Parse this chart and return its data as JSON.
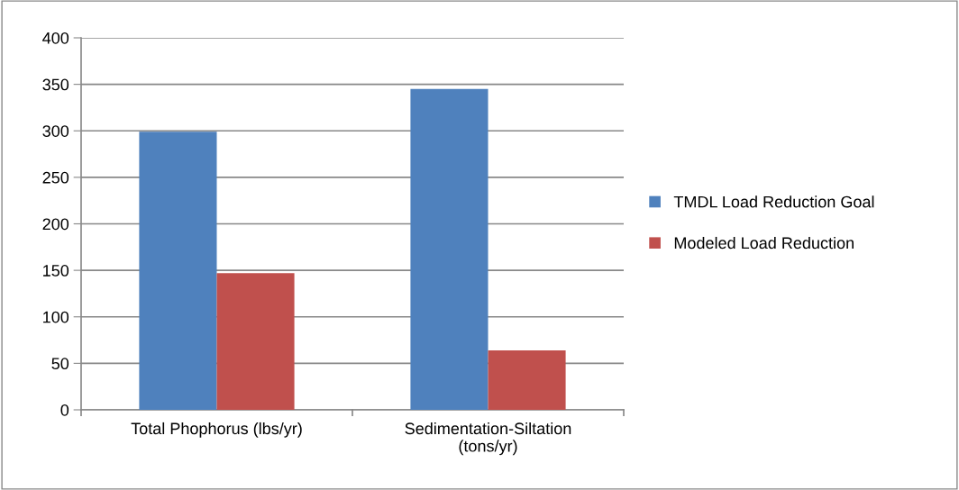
{
  "chart_data": {
    "type": "bar",
    "categories": [
      "Total Phophorus (lbs/yr)",
      "Sedimentation-Siltation\n(tons/yr)"
    ],
    "series": [
      {
        "name": "TMDL Load Reduction Goal",
        "color": "#4f81bd",
        "values": [
          299,
          345
        ]
      },
      {
        "name": "Modeled Load Reduction",
        "color": "#c0504d",
        "values": [
          147,
          64
        ]
      }
    ],
    "ylim": [
      0,
      400
    ],
    "yticks": [
      0,
      50,
      100,
      150,
      200,
      250,
      300,
      350,
      400
    ],
    "grid": "y",
    "legend": "right"
  }
}
